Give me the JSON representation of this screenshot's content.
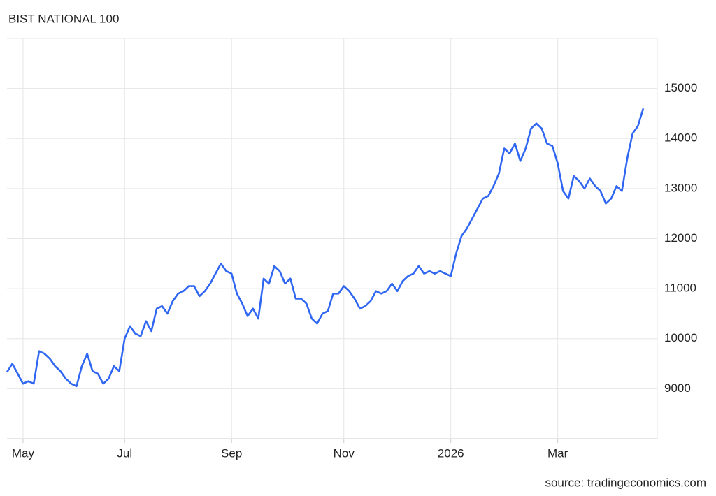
{
  "chart_data": {
    "type": "line",
    "title": "BIST NATIONAL 100",
    "source": "source: tradingeconomics.com",
    "color": "#2f66f2",
    "grid": true,
    "categories": [
      null,
      null,
      null,
      "May",
      null,
      null,
      null,
      null,
      null,
      null,
      null,
      null,
      null,
      null,
      null,
      null,
      null,
      null,
      null,
      null,
      null,
      null,
      "Jul",
      null,
      null,
      null,
      null,
      null,
      null,
      null,
      null,
      null,
      null,
      null,
      null,
      null,
      null,
      null,
      null,
      null,
      null,
      null,
      "Sep",
      null,
      null,
      null,
      null,
      null,
      null,
      null,
      null,
      null,
      null,
      null,
      null,
      null,
      null,
      null,
      null,
      null,
      null,
      null,
      null,
      "Nov",
      null,
      null,
      null,
      null,
      null,
      null,
      null,
      null,
      null,
      null,
      null,
      null,
      null,
      null,
      null,
      null,
      null,
      null,
      null,
      "2026",
      null,
      null,
      null,
      null,
      null,
      null,
      null,
      null,
      null,
      null,
      null,
      null,
      null,
      null,
      null,
      null,
      null,
      null,
      null,
      "Mar",
      null,
      null,
      null,
      null,
      null,
      null,
      null,
      null,
      null,
      null,
      null,
      null,
      null,
      null,
      null,
      null
    ],
    "values": [
      9330,
      9500,
      9300,
      9100,
      9150,
      9100,
      9750,
      9700,
      9600,
      9450,
      9350,
      9200,
      9100,
      9050,
      9450,
      9700,
      9350,
      9300,
      9100,
      9200,
      9450,
      9350,
      10000,
      10250,
      10100,
      10050,
      10350,
      10150,
      10600,
      10650,
      10500,
      10750,
      10900,
      10950,
      11050,
      11050,
      10850,
      10950,
      11100,
      11300,
      11500,
      11350,
      11300,
      10900,
      10700,
      10450,
      10600,
      10400,
      11200,
      11100,
      11450,
      11350,
      11100,
      11200,
      10800,
      10800,
      10700,
      10400,
      10300,
      10500,
      10550,
      10900,
      10900,
      11050,
      10950,
      10800,
      10600,
      10650,
      10750,
      10950,
      10900,
      10950,
      11100,
      10950,
      11150,
      11250,
      11300,
      11450,
      11300,
      11350,
      11300,
      11350,
      11300,
      11250,
      11700,
      12050,
      12200,
      12400,
      12600,
      12800,
      12850,
      13050,
      13300,
      13800,
      13700,
      13900,
      13550,
      13800,
      14200,
      14300,
      14200,
      13900,
      13850,
      13500,
      12950,
      12800,
      13250,
      13150,
      13000,
      13200,
      13050,
      12950,
      12700,
      12800,
      13050,
      12950,
      13600,
      14100,
      14250,
      14600
    ],
    "ylim": [
      8000,
      16000
    ],
    "yticks": [
      9000,
      10000,
      11000,
      12000,
      13000,
      14000,
      15000
    ]
  }
}
